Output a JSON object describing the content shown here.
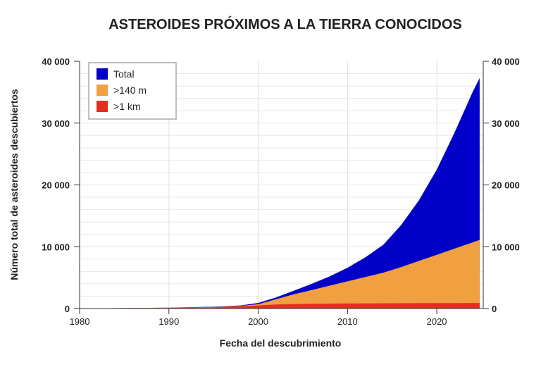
{
  "chart_data": {
    "type": "area",
    "title": "ASTEROIDES PRÓXIMOS A LA TIERRA CONOCIDOS",
    "xlabel": "Fecha del descubrimiento",
    "ylabel": "Número total de asteroides descubiertos",
    "xlim": [
      1980,
      2025.2
    ],
    "ylim": [
      0,
      40000
    ],
    "x_ticks": [
      1980,
      1990,
      2000,
      2010,
      2020
    ],
    "x_tick_labels": [
      "1980",
      "1990",
      "2000",
      "2010",
      "2020"
    ],
    "y_ticks": [
      0,
      10000,
      20000,
      30000,
      40000
    ],
    "y_tick_labels": [
      "0",
      "10 000",
      "20 000",
      "30 000",
      "40 000"
    ],
    "grid": true,
    "legend_position": "top-left",
    "series": [
      {
        "name": "Total",
        "color": "#0000c8",
        "x": [
          1982,
          1990,
          1995,
          1998,
          2000,
          2002,
          2004,
          2006,
          2008,
          2010,
          2012,
          2014,
          2016,
          2018,
          2019,
          2020,
          2022,
          2024,
          2024.8
        ],
        "values": [
          50,
          150,
          300,
          500,
          900,
          1800,
          2900,
          4000,
          5200,
          6600,
          8300,
          10300,
          13500,
          17500,
          20000,
          22500,
          28500,
          35000,
          37300
        ]
      },
      {
        "name": ">140 m",
        "color": "#f0a040",
        "x": [
          1982,
          1990,
          1995,
          1998,
          2000,
          2002,
          2004,
          2006,
          2008,
          2010,
          2012,
          2014,
          2016,
          2018,
          2020,
          2022,
          2024,
          2024.8
        ],
        "values": [
          40,
          130,
          260,
          420,
          700,
          1500,
          2300,
          3000,
          3700,
          4400,
          5100,
          5800,
          6700,
          7700,
          8700,
          9700,
          10700,
          11100
        ]
      },
      {
        "name": ">1 km",
        "color": "#e03020",
        "x": [
          1982,
          1990,
          1995,
          2000,
          2002,
          2005,
          2010,
          2015,
          2020,
          2024.8
        ],
        "values": [
          30,
          100,
          200,
          500,
          650,
          750,
          820,
          860,
          880,
          900
        ]
      }
    ]
  }
}
